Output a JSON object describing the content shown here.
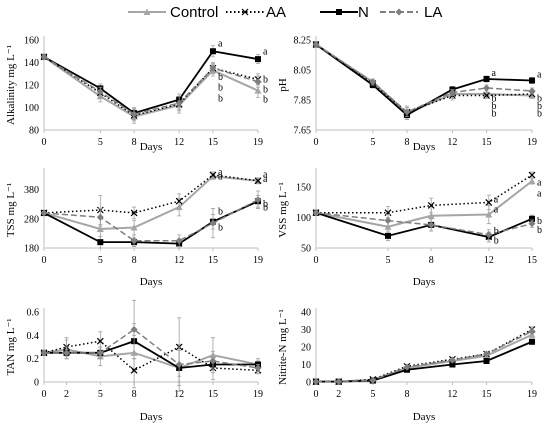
{
  "legend": {
    "items": [
      {
        "key": "control",
        "label": "Control"
      },
      {
        "key": "aa",
        "label": "AA"
      },
      {
        "key": "n",
        "label": "N"
      },
      {
        "key": "la",
        "label": "LA"
      }
    ]
  },
  "styles": {
    "control": {
      "color": "#a6a6a6",
      "dash": "",
      "marker": "triangle",
      "width": 2
    },
    "aa": {
      "color": "#000000",
      "dash": "1.5,2.5",
      "marker": "cross",
      "width": 1.5
    },
    "n": {
      "color": "#000000",
      "dash": "",
      "marker": "square",
      "width": 1.8
    },
    "la": {
      "color": "#7f7f7f",
      "dash": "6,3",
      "marker": "diamond",
      "width": 1.5
    }
  },
  "chart_data": [
    {
      "id": "alkalinity",
      "type": "line",
      "xlabel": "Days",
      "ylabel": "Alkalinity mg L⁻¹",
      "x": [
        0,
        5,
        8,
        12,
        15,
        19
      ],
      "xticks": [
        "0",
        "5",
        "8",
        "12",
        "15",
        "19"
      ],
      "ylim": [
        80,
        160
      ],
      "yticks": [
        80,
        100,
        120,
        140,
        160
      ],
      "grid": false,
      "series": [
        {
          "key": "control",
          "values": [
            145,
            110,
            92,
            102,
            133,
            115
          ],
          "errors": [
            2,
            5,
            6,
            7,
            5,
            6
          ]
        },
        {
          "key": "aa",
          "values": [
            145,
            113,
            93,
            103,
            135,
            125
          ],
          "errors": [
            2,
            4,
            5,
            6,
            4,
            5
          ]
        },
        {
          "key": "n",
          "values": [
            145,
            117,
            95,
            107,
            150,
            143
          ],
          "errors": [
            2,
            4,
            5,
            5,
            5,
            4
          ]
        },
        {
          "key": "la",
          "values": [
            145,
            114,
            94,
            104,
            135,
            123
          ],
          "errors": [
            2,
            4,
            5,
            6,
            5,
            5
          ]
        }
      ],
      "annotations": [
        {
          "x": 15,
          "y": 157,
          "text": "a"
        },
        {
          "x": 19,
          "y": 150,
          "text": "a"
        },
        {
          "x": 15,
          "y": 127,
          "text": "b"
        },
        {
          "x": 15,
          "y": 118,
          "text": "b"
        },
        {
          "x": 15,
          "y": 108,
          "text": "b"
        },
        {
          "x": 19,
          "y": 125,
          "text": "b"
        },
        {
          "x": 19,
          "y": 116,
          "text": "b"
        },
        {
          "x": 19,
          "y": 107,
          "text": "b"
        }
      ]
    },
    {
      "id": "ph",
      "type": "line",
      "xlabel": "Days",
      "ylabel": "pH",
      "x": [
        0,
        5,
        8,
        12,
        15,
        19
      ],
      "xticks": [
        "0",
        "5",
        "8",
        "12",
        "15",
        "19"
      ],
      "ylim": [
        7.65,
        8.25
      ],
      "yticks": [
        7.65,
        7.85,
        8.05,
        8.25
      ],
      "ytick_labels": [
        "7.65",
        "7.85",
        "8.05",
        "8.25"
      ],
      "grid": false,
      "series": [
        {
          "key": "control",
          "values": [
            8.22,
            7.97,
            7.76,
            7.89,
            7.89,
            7.88
          ],
          "errors": [
            0.01,
            0.02,
            0.04,
            0.03,
            0.02,
            0.02
          ]
        },
        {
          "key": "aa",
          "values": [
            8.22,
            7.96,
            7.77,
            7.88,
            7.88,
            7.89
          ],
          "errors": [
            0.01,
            0.02,
            0.04,
            0.03,
            0.02,
            0.02
          ]
        },
        {
          "key": "n",
          "values": [
            8.22,
            7.95,
            7.75,
            7.92,
            7.99,
            7.98
          ],
          "errors": [
            0.01,
            0.02,
            0.03,
            0.02,
            0.02,
            0.02
          ]
        },
        {
          "key": "la",
          "values": [
            8.22,
            7.97,
            7.77,
            7.9,
            7.93,
            7.91
          ],
          "errors": [
            0.01,
            0.02,
            0.03,
            0.02,
            0.02,
            0.02
          ]
        }
      ],
      "annotations": [
        {
          "x": 15,
          "y": 8.03,
          "text": "a"
        },
        {
          "x": 19,
          "y": 8.02,
          "text": "a"
        },
        {
          "x": 15,
          "y": 7.86,
          "text": "b"
        },
        {
          "x": 15,
          "y": 7.81,
          "text": "b"
        },
        {
          "x": 15,
          "y": 7.76,
          "text": "b"
        },
        {
          "x": 19,
          "y": 7.86,
          "text": "b"
        },
        {
          "x": 19,
          "y": 7.81,
          "text": "b"
        },
        {
          "x": 19,
          "y": 7.76,
          "text": "b"
        }
      ]
    },
    {
      "id": "tss",
      "type": "line",
      "xlabel": "Days",
      "ylabel": "TSS mg L⁻¹",
      "x": [
        0,
        5,
        8,
        12,
        15,
        19
      ],
      "xticks": [
        "0",
        "5",
        "8",
        "12",
        "15",
        "19"
      ],
      "ylim": [
        180,
        440
      ],
      "yticks": [
        180,
        280,
        380
      ],
      "grid": false,
      "series": [
        {
          "key": "control",
          "values": [
            300,
            245,
            250,
            320,
            425,
            410
          ],
          "errors": [
            5,
            40,
            25,
            30,
            10,
            10
          ]
        },
        {
          "key": "aa",
          "values": [
            300,
            310,
            300,
            340,
            430,
            410
          ],
          "errors": [
            5,
            50,
            20,
            25,
            10,
            10
          ]
        },
        {
          "key": "n",
          "values": [
            300,
            200,
            200,
            195,
            270,
            340
          ],
          "errors": [
            5,
            20,
            15,
            15,
            25,
            20
          ]
        },
        {
          "key": "la",
          "values": [
            300,
            285,
            205,
            205,
            265,
            345
          ],
          "errors": [
            5,
            30,
            20,
            20,
            50,
            30
          ]
        }
      ],
      "annotations": [
        {
          "x": 15,
          "y": 440,
          "text": "a"
        },
        {
          "x": 15,
          "y": 425,
          "text": "a"
        },
        {
          "x": 19,
          "y": 432,
          "text": "a"
        },
        {
          "x": 19,
          "y": 416,
          "text": "a"
        },
        {
          "x": 15,
          "y": 305,
          "text": "b"
        },
        {
          "x": 15,
          "y": 250,
          "text": "b"
        },
        {
          "x": 19,
          "y": 330,
          "text": "b"
        },
        {
          "x": 19,
          "y": 318,
          "text": "b"
        }
      ]
    },
    {
      "id": "vss",
      "type": "line",
      "xlabel": "Days",
      "ylabel": "VSS mg L⁻¹",
      "x": [
        0,
        5,
        8,
        12,
        15
      ],
      "xticks": [
        "0",
        "5",
        "8",
        "12",
        "15"
      ],
      "ylim": [
        50,
        175
      ],
      "yticks": [
        50,
        100,
        150
      ],
      "grid": false,
      "series": [
        {
          "key": "control",
          "values": [
            108,
            85,
            103,
            105,
            160
          ],
          "errors": [
            3,
            15,
            15,
            15,
            5
          ]
        },
        {
          "key": "aa",
          "values": [
            108,
            108,
            120,
            125,
            170
          ],
          "errors": [
            3,
            10,
            12,
            12,
            5
          ]
        },
        {
          "key": "n",
          "values": [
            108,
            70,
            88,
            68,
            98
          ],
          "errors": [
            3,
            8,
            10,
            8,
            6
          ]
        },
        {
          "key": "la",
          "values": [
            108,
            95,
            88,
            72,
            90
          ],
          "errors": [
            3,
            10,
            10,
            8,
            6
          ]
        }
      ],
      "annotations": [
        {
          "x": 12,
          "y": 130,
          "text": "a"
        },
        {
          "x": 12,
          "y": 113,
          "text": "a"
        },
        {
          "x": 15,
          "y": 158,
          "text": "a"
        },
        {
          "x": 15,
          "y": 140,
          "text": "a"
        },
        {
          "x": 12,
          "y": 78,
          "text": "b"
        },
        {
          "x": 12,
          "y": 62,
          "text": "b"
        },
        {
          "x": 15,
          "y": 94,
          "text": "b"
        },
        {
          "x": 15,
          "y": 80,
          "text": "b"
        }
      ]
    },
    {
      "id": "tan",
      "type": "line",
      "xlabel": "Days",
      "ylabel": "TAN mg L⁻¹",
      "x": [
        0,
        2,
        5,
        8,
        12,
        15,
        19
      ],
      "xticks": [
        "0",
        "2",
        "5",
        "8",
        "12",
        "15",
        "19"
      ],
      "ylim": [
        0,
        0.6
      ],
      "yticks": [
        0,
        0.2,
        0.4,
        0.6
      ],
      "ytick_labels": [
        "0",
        "0.2",
        "0.4",
        "0.6"
      ],
      "grid": false,
      "series": [
        {
          "key": "control",
          "values": [
            0.25,
            0.28,
            0.22,
            0.25,
            0.12,
            0.23,
            0.15
          ],
          "errors": [
            0.02,
            0.08,
            0.08,
            0.15,
            0.2,
            0.15,
            0.05
          ]
        },
        {
          "key": "aa",
          "values": [
            0.25,
            0.3,
            0.35,
            0.1,
            0.3,
            0.12,
            0.1
          ],
          "errors": [
            0.02,
            0.08,
            0.08,
            0.15,
            0.25,
            0.1,
            0.03
          ]
        },
        {
          "key": "n",
          "values": [
            0.25,
            0.25,
            0.25,
            0.35,
            0.12,
            0.15,
            0.15
          ],
          "errors": [
            0.02,
            0.05,
            0.05,
            0.15,
            0.15,
            0.05,
            0.03
          ]
        },
        {
          "key": "la",
          "values": [
            0.25,
            0.25,
            0.25,
            0.45,
            0.15,
            0.18,
            0.12
          ],
          "errors": [
            0.02,
            0.05,
            0.05,
            0.25,
            0.15,
            0.08,
            0.03
          ]
        }
      ]
    },
    {
      "id": "nitrite",
      "type": "line",
      "xlabel": "Days",
      "ylabel": "Nitrite-N mg L⁻¹",
      "x": [
        0,
        2,
        5,
        8,
        12,
        15,
        19
      ],
      "xticks": [
        "0",
        "2",
        "5",
        "8",
        "12",
        "15",
        "19"
      ],
      "ylim": [
        0,
        40
      ],
      "yticks": [
        0,
        10,
        20,
        30,
        40
      ],
      "grid": false,
      "series": [
        {
          "key": "control",
          "values": [
            0.2,
            0.2,
            1.2,
            8,
            12,
            15,
            27
          ],
          "errors": [
            0.1,
            0.1,
            0.3,
            0.8,
            1,
            1,
            1.5
          ]
        },
        {
          "key": "aa",
          "values": [
            0.2,
            0.2,
            1.5,
            9,
            13,
            16,
            30
          ],
          "errors": [
            0.1,
            0.1,
            0.3,
            0.8,
            1,
            1,
            1.5
          ]
        },
        {
          "key": "n",
          "values": [
            0.2,
            0.2,
            0.8,
            7,
            10,
            12,
            23
          ],
          "errors": [
            0.1,
            0.1,
            0.3,
            0.8,
            1,
            1,
            1.5
          ]
        },
        {
          "key": "la",
          "values": [
            0.2,
            0.2,
            1.0,
            8.5,
            12.5,
            16,
            29
          ],
          "errors": [
            0.1,
            0.1,
            0.3,
            0.8,
            1,
            1,
            1.5
          ]
        }
      ]
    }
  ]
}
